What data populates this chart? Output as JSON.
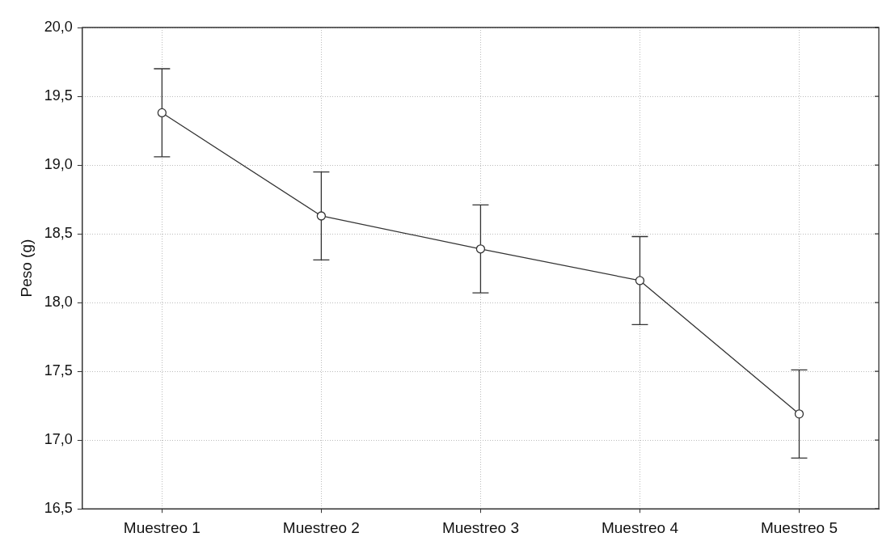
{
  "chart_data": {
    "type": "line",
    "ylabel": "Peso (g)",
    "categories": [
      "Muestreo 1",
      "Muestreo 2",
      "Muestreo 3",
      "Muestreo 4",
      "Muestreo 5"
    ],
    "series": [
      {
        "color": "#333333",
        "values": [
          19.38,
          18.63,
          18.39,
          18.16,
          17.19
        ],
        "errors": [
          0.32,
          0.32,
          0.32,
          0.32,
          0.32
        ]
      }
    ],
    "ylim": [
      16.5,
      20
    ],
    "yticks": [
      {
        "value": 16.5,
        "label": "16,5"
      },
      {
        "value": 17,
        "label": "17,0"
      },
      {
        "value": 17.5,
        "label": "17,5"
      },
      {
        "value": 18,
        "label": "18,0"
      },
      {
        "value": 18.5,
        "label": "18,5"
      },
      {
        "value": 19,
        "label": "19,0"
      },
      {
        "value": 19.5,
        "label": "19,5"
      },
      {
        "value": 20,
        "label": "20,0"
      }
    ],
    "grid": true,
    "legend": false,
    "marker": "circle",
    "line_style": "solid"
  }
}
